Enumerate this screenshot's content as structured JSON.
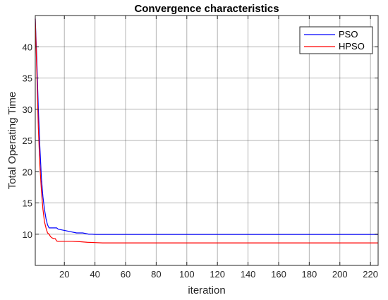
{
  "chart_data": {
    "type": "line",
    "title": "Convergence characteristics",
    "xlabel": "iteration",
    "ylabel": "Total Operating Time",
    "xlim": [
      1,
      225
    ],
    "ylim": [
      5,
      45
    ],
    "xticks": [
      20,
      40,
      60,
      80,
      100,
      120,
      140,
      160,
      180,
      200,
      220
    ],
    "yticks": [
      10,
      15,
      20,
      25,
      30,
      35,
      40
    ],
    "grid": true,
    "legend_position": "top-right",
    "series": [
      {
        "name": "PSO",
        "color": "#0000ff",
        "x": [
          1,
          2,
          3,
          4,
          5,
          6,
          7,
          8,
          9,
          10,
          12,
          14,
          15,
          16,
          18,
          20,
          22,
          24,
          26,
          28,
          30,
          32,
          34,
          36,
          38,
          40,
          45,
          50,
          60,
          80,
          100,
          150,
          200,
          225
        ],
        "y": [
          44.5,
          38,
          30,
          24,
          19,
          16,
          14,
          12.5,
          11.5,
          11,
          11,
          11,
          11,
          10.8,
          10.7,
          10.6,
          10.5,
          10.4,
          10.3,
          10.2,
          10.2,
          10.2,
          10.1,
          10.0,
          10.0,
          9.95,
          9.95,
          9.95,
          9.95,
          9.95,
          9.95,
          9.95,
          9.95,
          9.95
        ]
      },
      {
        "name": "HPSO",
        "color": "#ff0000",
        "x": [
          1,
          2,
          3,
          4,
          5,
          6,
          7,
          8,
          9,
          10,
          11,
          12,
          13,
          14,
          15,
          16,
          20,
          25,
          30,
          35,
          40,
          45,
          50,
          60,
          80,
          100,
          150,
          200,
          225
        ],
        "y": [
          44.5,
          36,
          27,
          21,
          17,
          14,
          12,
          11,
          10.2,
          10.0,
          9.6,
          9.4,
          9.3,
          9.3,
          8.9,
          8.85,
          8.85,
          8.85,
          8.8,
          8.7,
          8.65,
          8.6,
          8.6,
          8.6,
          8.6,
          8.6,
          8.6,
          8.6,
          8.6
        ]
      }
    ]
  }
}
